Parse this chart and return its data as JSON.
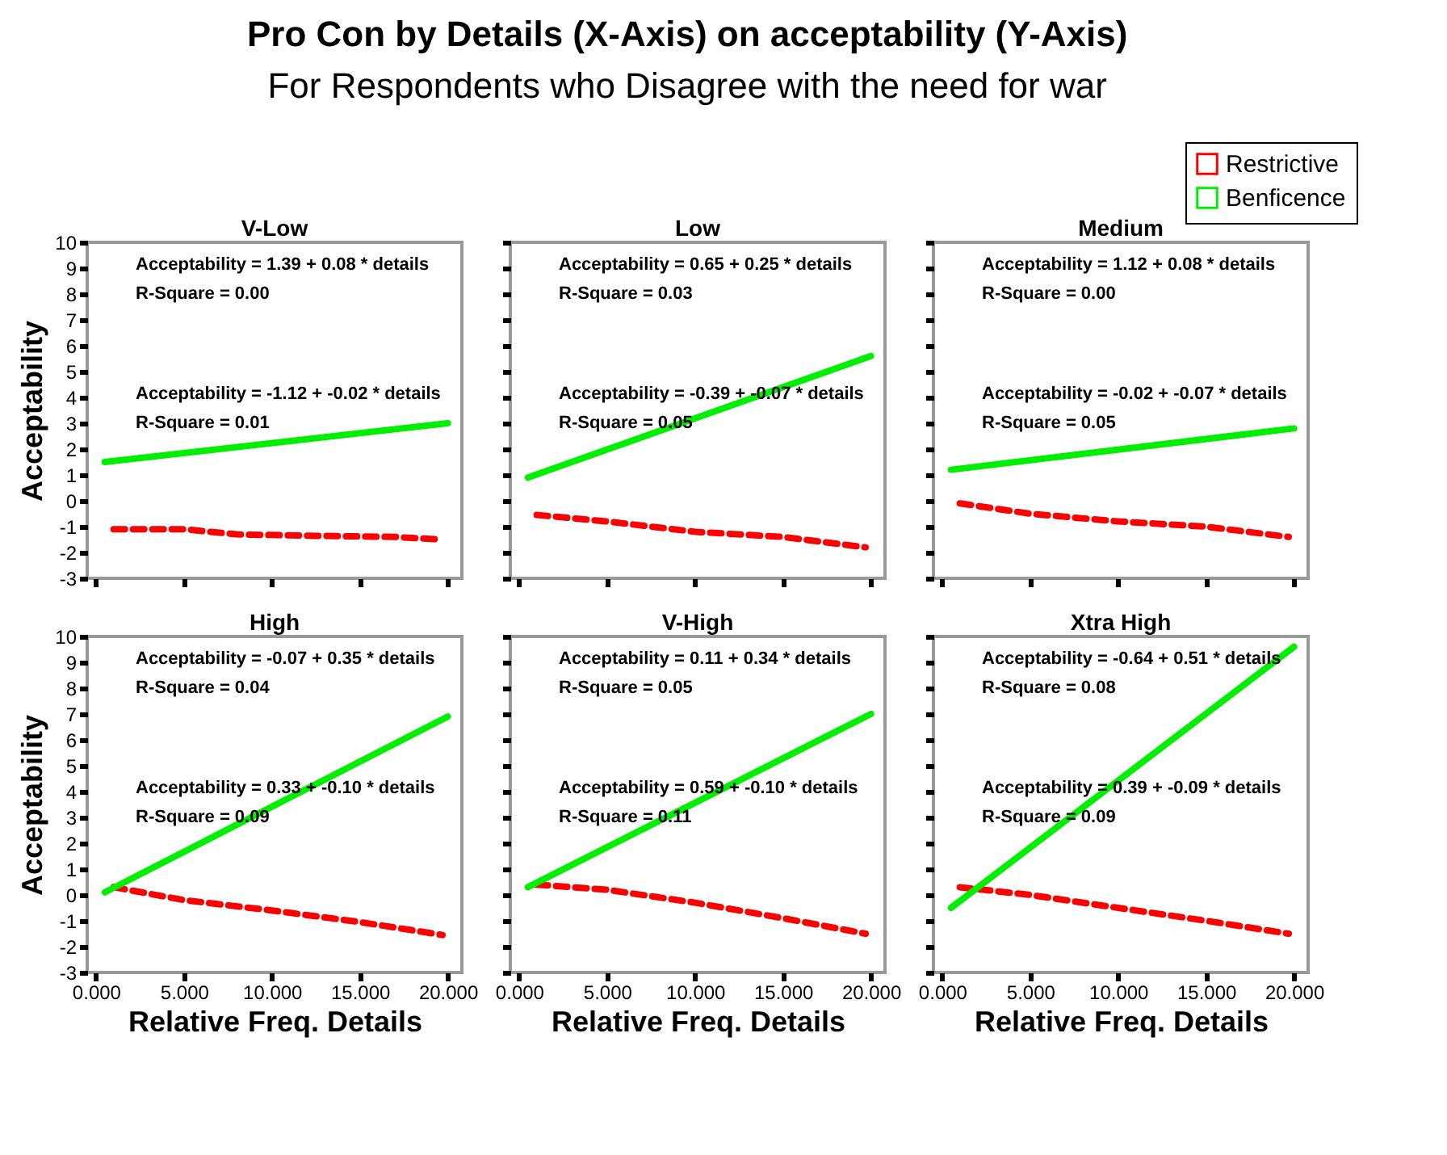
{
  "chart_data": [
    {
      "type": "line",
      "title": "Pro Con by Details (X-Axis) on acceptability (Y-Axis)",
      "subtitle": "For Respondents who Disagree with the need for war",
      "legend": "top right",
      "tick_labels": "y",
      "ylabel": "Acceptability",
      "xlim": [
        -0.5,
        20.8
      ],
      "xticks": [
        {
          "value": 0,
          "label": "0.000"
        },
        {
          "value": 5,
          "label": "5.000"
        },
        {
          "value": 10,
          "label": "10.000"
        },
        {
          "value": 15,
          "label": "15.000"
        },
        {
          "value": 20,
          "label": "20.000"
        }
      ],
      "ylim": [
        -3,
        10
      ],
      "yticks": [
        -3,
        -2,
        -1,
        0,
        1,
        2,
        3,
        4,
        5,
        6,
        7,
        8,
        9,
        10
      ],
      "annotations": [
        "V-Low",
        "Acceptability = 1.39 + 0.08 * details",
        "R-Square = 0.00",
        "Acceptability = -1.12 + -0.02 * details",
        "R-Square = 0.01"
      ],
      "series": [
        {
          "name": "Restrictive",
          "color": "#ff0000",
          "line_style": "dashed",
          "x": [
            1,
            5,
            8,
            12,
            17,
            19.7
          ],
          "values": [
            -1.1,
            -1.1,
            -1.3,
            -1.35,
            -1.4,
            -1.5
          ]
        },
        {
          "name": "Benficence",
          "color": "#00ee00",
          "line_style": "solid",
          "x": [
            0.5,
            20
          ],
          "values": [
            1.5,
            3.0
          ]
        }
      ]
    },
    {
      "type": "line",
      "tick_labels": false,
      "xlim": [
        -0.5,
        20.8
      ],
      "xticks": [
        {
          "value": 0,
          "label": "0.000"
        },
        {
          "value": 5,
          "label": "5.000"
        },
        {
          "value": 10,
          "label": "10.000"
        },
        {
          "value": 15,
          "label": "15.000"
        },
        {
          "value": 20,
          "label": "20.000"
        }
      ],
      "ylim": [
        -3,
        10
      ],
      "yticks": [
        -3,
        -2,
        -1,
        0,
        1,
        2,
        3,
        4,
        5,
        6,
        7,
        8,
        9,
        10
      ],
      "annotations": [
        "Low",
        "Acceptability = 0.65 + 0.25 * details",
        "R-Square = 0.03",
        "Acceptability = -0.39 + -0.07 * details",
        "R-Square = 0.05"
      ],
      "series": [
        {
          "name": "Restrictive",
          "color": "#ff0000",
          "line_style": "dashed",
          "x": [
            1,
            5,
            10,
            15,
            19.7
          ],
          "values": [
            -0.55,
            -0.8,
            -1.2,
            -1.4,
            -1.8
          ]
        },
        {
          "name": "Benficence",
          "color": "#00ee00",
          "line_style": "solid",
          "x": [
            0.5,
            20
          ],
          "values": [
            0.9,
            5.6
          ]
        }
      ]
    },
    {
      "type": "line",
      "tick_labels": false,
      "xlim": [
        -0.5,
        20.8
      ],
      "xticks": [
        {
          "value": 0,
          "label": "0.000"
        },
        {
          "value": 5,
          "label": "5.000"
        },
        {
          "value": 10,
          "label": "10.000"
        },
        {
          "value": 15,
          "label": "15.000"
        },
        {
          "value": 20,
          "label": "20.000"
        }
      ],
      "ylim": [
        -3,
        10
      ],
      "yticks": [
        -3,
        -2,
        -1,
        0,
        1,
        2,
        3,
        4,
        5,
        6,
        7,
        8,
        9,
        10
      ],
      "annotations": [
        "Medium",
        "Acceptability = 1.12 + 0.08 * details",
        "R-Square = 0.00",
        "Acceptability = -0.02 + -0.07 * details",
        "R-Square = 0.05"
      ],
      "series": [
        {
          "name": "Restrictive",
          "color": "#ff0000",
          "line_style": "dashed",
          "x": [
            1,
            5,
            10,
            15,
            19.7
          ],
          "values": [
            -0.1,
            -0.5,
            -0.8,
            -1.0,
            -1.4
          ]
        },
        {
          "name": "Benficence",
          "color": "#00ee00",
          "line_style": "solid",
          "x": [
            0.5,
            20
          ],
          "values": [
            1.2,
            2.8
          ]
        }
      ]
    },
    {
      "type": "line",
      "xlabel": "Relative Freq. Details",
      "ylabel": "Acceptability",
      "xlim": [
        -0.5,
        20.8
      ],
      "xticks": [
        {
          "value": 0,
          "label": "0.000"
        },
        {
          "value": 5,
          "label": "5.000"
        },
        {
          "value": 10,
          "label": "10.000"
        },
        {
          "value": 15,
          "label": "15.000"
        },
        {
          "value": 20,
          "label": "20.000"
        }
      ],
      "ylim": [
        -3,
        10
      ],
      "yticks": [
        -3,
        -2,
        -1,
        0,
        1,
        2,
        3,
        4,
        5,
        6,
        7,
        8,
        9,
        10
      ],
      "annotations": [
        "High",
        "Acceptability = -0.07 + 0.35 * details",
        "R-Square = 0.04",
        "Acceptability = 0.33 + -0.10 * details",
        "R-Square = 0.09"
      ],
      "series": [
        {
          "name": "Restrictive",
          "color": "#ff0000",
          "line_style": "dashed",
          "x": [
            1,
            5,
            10,
            15,
            19.7
          ],
          "values": [
            0.3,
            -0.2,
            -0.6,
            -1.05,
            -1.55
          ]
        },
        {
          "name": "Benficence",
          "color": "#00ee00",
          "line_style": "solid",
          "x": [
            0.5,
            20
          ],
          "values": [
            0.1,
            6.9
          ]
        }
      ]
    },
    {
      "type": "line",
      "tick_labels": "x",
      "xlabel": "Relative Freq. Details",
      "xlim": [
        -0.5,
        20.8
      ],
      "xticks": [
        {
          "value": 0,
          "label": "0.000"
        },
        {
          "value": 5,
          "label": "5.000"
        },
        {
          "value": 10,
          "label": "10.000"
        },
        {
          "value": 15,
          "label": "15.000"
        },
        {
          "value": 20,
          "label": "20.000"
        }
      ],
      "ylim": [
        -3,
        10
      ],
      "yticks": [
        -3,
        -2,
        -1,
        0,
        1,
        2,
        3,
        4,
        5,
        6,
        7,
        8,
        9,
        10
      ],
      "annotations": [
        "V-High",
        "Acceptability = 0.11 + 0.34 * details",
        "R-Square = 0.05",
        "Acceptability = 0.59 + -0.10 * details",
        "R-Square = 0.11"
      ],
      "series": [
        {
          "name": "Restrictive",
          "color": "#ff0000",
          "line_style": "dashed",
          "x": [
            1,
            5,
            10,
            15,
            19.7
          ],
          "values": [
            0.4,
            0.2,
            -0.3,
            -0.9,
            -1.5
          ]
        },
        {
          "name": "Benficence",
          "color": "#00ee00",
          "line_style": "solid",
          "x": [
            0.5,
            20
          ],
          "values": [
            0.3,
            7.0
          ]
        }
      ]
    },
    {
      "type": "line",
      "tick_labels": "x",
      "xlabel": "Relative Freq. Details",
      "xlim": [
        -0.5,
        20.8
      ],
      "xticks": [
        {
          "value": 0,
          "label": "0.000"
        },
        {
          "value": 5,
          "label": "5.000"
        },
        {
          "value": 10,
          "label": "10.000"
        },
        {
          "value": 15,
          "label": "15.000"
        },
        {
          "value": 20,
          "label": "20.000"
        }
      ],
      "ylim": [
        -3,
        10
      ],
      "yticks": [
        -3,
        -2,
        -1,
        0,
        1,
        2,
        3,
        4,
        5,
        6,
        7,
        8,
        9,
        10
      ],
      "annotations": [
        "Xtra High",
        "Acceptability = -0.64 + 0.51 * details",
        "R-Square = 0.08",
        "Acceptability = 0.39 + -0.09 * details",
        "R-Square = 0.09"
      ],
      "series": [
        {
          "name": "Restrictive",
          "color": "#ff0000",
          "line_style": "dashed",
          "x": [
            1,
            5,
            10,
            15,
            19.7
          ],
          "values": [
            0.3,
            0.0,
            -0.5,
            -1.0,
            -1.5
          ]
        },
        {
          "name": "Benficence",
          "color": "#00ee00",
          "line_style": "solid",
          "x": [
            0.5,
            20
          ],
          "values": [
            -0.5,
            9.6
          ]
        }
      ]
    }
  ]
}
